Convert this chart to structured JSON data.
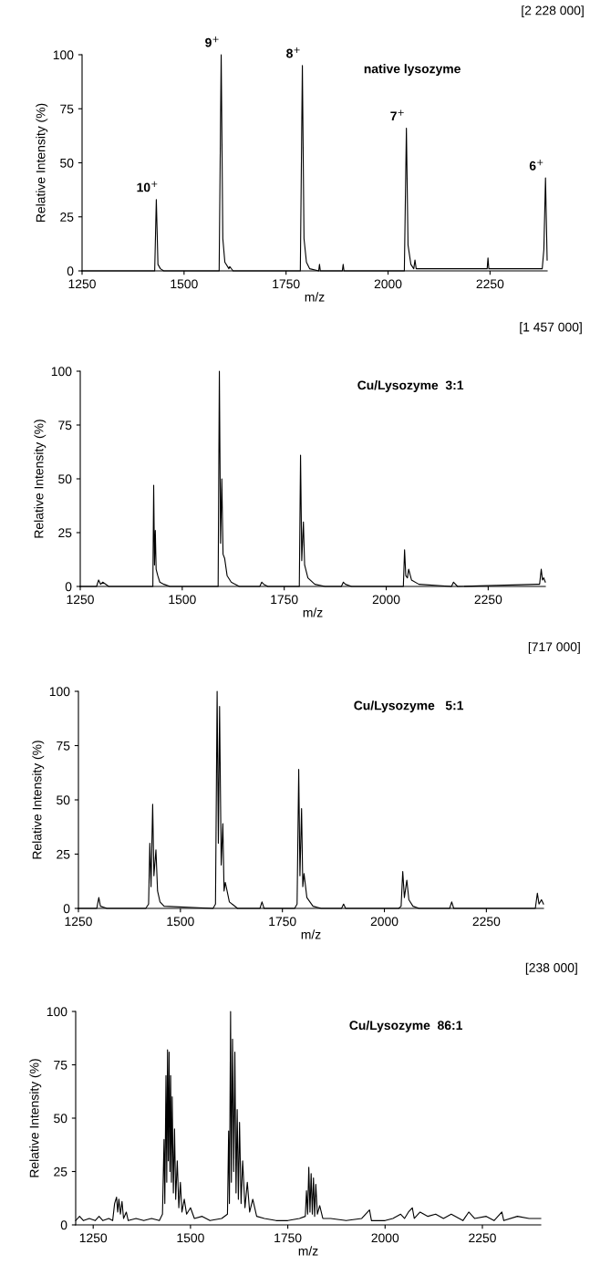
{
  "chart_data": [
    {
      "type": "line",
      "title": "native lysozyme",
      "xlabel": "m/z",
      "ylabel": "Relative Intensity (%)",
      "xlim": [
        1250,
        2390
      ],
      "ylim": [
        0,
        100
      ],
      "xticks": [
        1250,
        1500,
        1750,
        2000,
        2250
      ],
      "yticks": [
        0,
        25,
        50,
        75,
        100
      ],
      "grid": false,
      "annotations": [
        "[2 228 000]",
        {
          "text": "10$^{+}$",
          "x": 1432,
          "y": 33
        },
        {
          "text": "9$^{+}$",
          "x": 1591,
          "y": 100
        },
        {
          "text": "8$^{+}$",
          "x": 1790,
          "y": 95
        },
        {
          "text": "7$^{+}$",
          "x": 2045,
          "y": 66
        },
        {
          "text": "6$^{+}$",
          "x": 2386,
          "y": 43
        }
      ],
      "series": [
        {
          "color": "#000000",
          "x": [
            1250,
            1300,
            1400,
            1428,
            1432,
            1436,
            1442,
            1450,
            1560,
            1586,
            1591,
            1595,
            1600,
            1610,
            1612,
            1620,
            1700,
            1785,
            1790,
            1794,
            1800,
            1808,
            1830,
            1832,
            1834,
            1888,
            1890,
            1892,
            2000,
            2040,
            2045,
            2049,
            2056,
            2063,
            2066,
            2069,
            2200,
            2243,
            2245,
            2247,
            2300,
            2378,
            2382,
            2386,
            2390
          ],
          "values": [
            0,
            0,
            0,
            0,
            33,
            3,
            1,
            0,
            0,
            0,
            100,
            15,
            4,
            1,
            2,
            0,
            0,
            0,
            95,
            15,
            4,
            1,
            0,
            3,
            0,
            0,
            3,
            0,
            0,
            0,
            66,
            12,
            3,
            1,
            5,
            1,
            1,
            1,
            6,
            1,
            1,
            1,
            10,
            43,
            5
          ]
        }
      ]
    },
    {
      "type": "line",
      "title": "Cu/Lysozyme  3:1",
      "xlabel": "m/z",
      "ylabel": "Relative Intensity (%)",
      "xlim": [
        1250,
        2390
      ],
      "ylim": [
        0,
        100
      ],
      "xticks": [
        1250,
        1500,
        1750,
        2000,
        2250
      ],
      "yticks": [
        0,
        25,
        50,
        75,
        100
      ],
      "grid": false,
      "annotations": [
        "[1 457 000]"
      ],
      "series": [
        {
          "color": "#000000",
          "x": [
            1250,
            1290,
            1295,
            1300,
            1305,
            1320,
            1420,
            1428,
            1430,
            1432,
            1434,
            1436,
            1440,
            1445,
            1455,
            1470,
            1580,
            1588,
            1591,
            1594,
            1597,
            1600,
            1604,
            1610,
            1620,
            1640,
            1690,
            1695,
            1700,
            1710,
            1780,
            1787,
            1790,
            1793,
            1797,
            1800,
            1808,
            1825,
            1850,
            1890,
            1895,
            1900,
            1915,
            2035,
            2042,
            2045,
            2048,
            2052,
            2055,
            2062,
            2080,
            2160,
            2165,
            2175,
            2370,
            2376,
            2380,
            2383,
            2386,
            2390
          ],
          "values": [
            0,
            0,
            3,
            1,
            2,
            0,
            0,
            0,
            47,
            10,
            26,
            8,
            5,
            2,
            1,
            0,
            0,
            0,
            100,
            20,
            50,
            15,
            13,
            5,
            2,
            0,
            0,
            2,
            1,
            0,
            0,
            0,
            61,
            12,
            30,
            10,
            4,
            1,
            0,
            0,
            2,
            1,
            0,
            0,
            0,
            17,
            5,
            4,
            8,
            3,
            1,
            0,
            2,
            0,
            1,
            1,
            8,
            3,
            4,
            2
          ]
        }
      ]
    },
    {
      "type": "line",
      "title": "Cu/Lysozyme   5:1",
      "xlabel": "m/z",
      "ylabel": "Relative Intensity (%)",
      "xlim": [
        1250,
        2390
      ],
      "ylim": [
        0,
        100
      ],
      "xticks": [
        1250,
        1500,
        1750,
        2000,
        2250
      ],
      "yticks": [
        0,
        25,
        50,
        75,
        100
      ],
      "grid": false,
      "annotations": [
        "[717 000]"
      ],
      "series": [
        {
          "color": "#000000",
          "x": [
            1250,
            1295,
            1300,
            1304,
            1320,
            1415,
            1422,
            1425,
            1428,
            1432,
            1435,
            1440,
            1444,
            1450,
            1460,
            1580,
            1586,
            1590,
            1593,
            1596,
            1600,
            1604,
            1607,
            1610,
            1620,
            1640,
            1695,
            1700,
            1705,
            1780,
            1786,
            1790,
            1793,
            1797,
            1800,
            1803,
            1810,
            1825,
            1845,
            1895,
            1900,
            1905,
            2035,
            2041,
            2045,
            2049,
            2055,
            2060,
            2070,
            2085,
            2160,
            2165,
            2170,
            2370,
            2375,
            2379,
            2385,
            2390
          ],
          "values": [
            0,
            0,
            5,
            1,
            0,
            0,
            2,
            30,
            10,
            48,
            15,
            27,
            8,
            3,
            1,
            0,
            2,
            100,
            30,
            93,
            20,
            39,
            8,
            12,
            3,
            0,
            0,
            3,
            0,
            0,
            2,
            64,
            15,
            46,
            10,
            16,
            5,
            1,
            0,
            0,
            2,
            0,
            0,
            1,
            17,
            5,
            13,
            4,
            1,
            0,
            0,
            3,
            0,
            0,
            7,
            2,
            4,
            2
          ]
        }
      ]
    },
    {
      "type": "line",
      "title": "Cu/Lysozyme  86:1",
      "xlabel": "m/z",
      "ylabel": "Relative Intensity (%)",
      "xlim": [
        1205,
        2400
      ],
      "ylim": [
        0,
        100
      ],
      "xticks": [
        1250,
        1500,
        1750,
        2000,
        2250
      ],
      "yticks": [
        0,
        25,
        50,
        75,
        100
      ],
      "grid": false,
      "annotations": [
        "[238 000]"
      ],
      "series": [
        {
          "color": "#000000",
          "x": [
            1205,
            1215,
            1225,
            1240,
            1255,
            1265,
            1275,
            1290,
            1300,
            1305,
            1310,
            1313,
            1316,
            1320,
            1324,
            1328,
            1335,
            1340,
            1360,
            1380,
            1400,
            1420,
            1428,
            1432,
            1434,
            1437,
            1439,
            1441,
            1443,
            1445,
            1447,
            1449,
            1451,
            1453,
            1456,
            1459,
            1462,
            1466,
            1470,
            1474,
            1478,
            1484,
            1490,
            1500,
            1510,
            1530,
            1550,
            1580,
            1595,
            1598,
            1600,
            1603,
            1605,
            1608,
            1611,
            1614,
            1617,
            1620,
            1623,
            1626,
            1630,
            1634,
            1640,
            1646,
            1652,
            1660,
            1670,
            1690,
            1720,
            1750,
            1780,
            1795,
            1798,
            1801,
            1804,
            1807,
            1810,
            1813,
            1816,
            1819,
            1822,
            1826,
            1832,
            1840,
            1860,
            1900,
            1940,
            1960,
            1965,
            2000,
            2020,
            2040,
            2050,
            2060,
            2070,
            2075,
            2090,
            2110,
            2130,
            2150,
            2170,
            2200,
            2215,
            2230,
            2260,
            2280,
            2300,
            2305,
            2340,
            2370,
            2400
          ],
          "values": [
            2,
            4,
            2,
            3,
            2,
            4,
            2,
            3,
            2,
            10,
            13,
            6,
            12,
            5,
            11,
            3,
            6,
            2,
            3,
            2,
            3,
            2,
            5,
            40,
            10,
            70,
            20,
            82,
            30,
            81,
            25,
            70,
            20,
            60,
            15,
            45,
            12,
            30,
            8,
            20,
            6,
            12,
            5,
            8,
            3,
            4,
            2,
            3,
            5,
            44,
            10,
            100,
            20,
            87,
            25,
            81,
            15,
            54,
            12,
            48,
            10,
            30,
            8,
            20,
            6,
            12,
            4,
            3,
            2,
            2,
            3,
            4,
            16,
            5,
            27,
            6,
            24,
            5,
            22,
            4,
            19,
            5,
            9,
            3,
            3,
            2,
            3,
            7,
            2,
            2,
            3,
            5,
            3,
            6,
            8,
            3,
            6,
            4,
            5,
            3,
            5,
            2,
            6,
            3,
            4,
            2,
            6,
            2,
            4,
            3,
            3
          ]
        }
      ]
    }
  ]
}
